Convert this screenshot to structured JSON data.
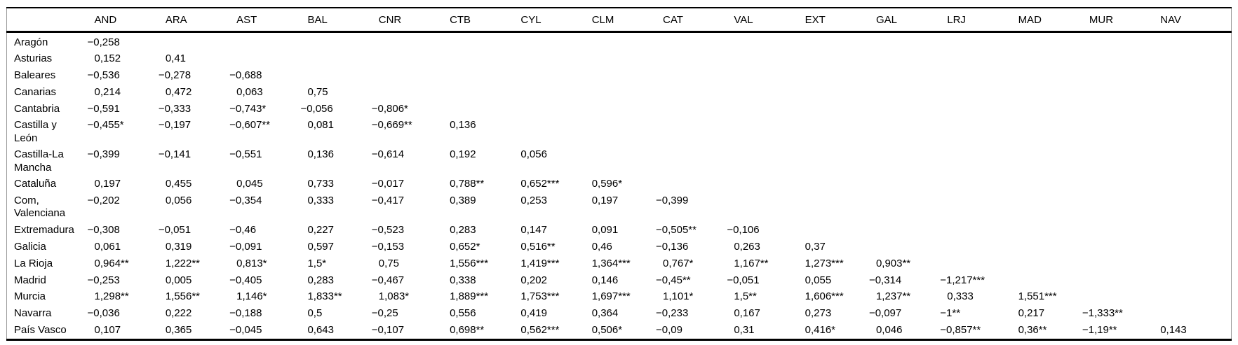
{
  "table": {
    "corner_label": "",
    "columns": [
      "AND",
      "ARA",
      "AST",
      "BAL",
      "CNR",
      "CTB",
      "CYL",
      "CLM",
      "CAT",
      "VAL",
      "EXT",
      "GAL",
      "LRJ",
      "MAD",
      "MUR",
      "NAV"
    ],
    "rows": [
      {
        "label": "Aragón",
        "values": [
          "−0,258"
        ]
      },
      {
        "label": "Asturias",
        "values": [
          "0,152",
          "0,41"
        ]
      },
      {
        "label": "Baleares",
        "values": [
          "−0,536",
          "−0,278",
          "−0,688"
        ]
      },
      {
        "label": "Canarias",
        "values": [
          "0,214",
          "0,472",
          "0,063",
          "0,75"
        ]
      },
      {
        "label": "Cantabria",
        "values": [
          "−0,591",
          "−0,333",
          "−0,743*",
          "−0,056",
          "−0,806*"
        ]
      },
      {
        "label": "Castilla y\nLeón",
        "values": [
          "−0,455*",
          "−0,197",
          "−0,607**",
          "0,081",
          "−0,669**",
          "0,136"
        ]
      },
      {
        "label": "Castilla-La\nMancha",
        "values": [
          "−0,399",
          "−0,141",
          "−0,551",
          "0,136",
          "−0,614",
          "0,192",
          "0,056"
        ]
      },
      {
        "label": "Cataluña",
        "values": [
          "0,197",
          "0,455",
          "0,045",
          "0,733",
          "−0,017",
          "0,788**",
          "0,652***",
          "0,596*"
        ]
      },
      {
        "label": "Com,\nValenciana",
        "values": [
          "−0,202",
          "0,056",
          "−0,354",
          "0,333",
          "−0,417",
          "0,389",
          "0,253",
          "0,197",
          "−0,399"
        ]
      },
      {
        "label": "Extremadura",
        "values": [
          "−0,308",
          "−0,051",
          "−0,46",
          "0,227",
          "−0,523",
          "0,283",
          "0,147",
          "0,091",
          "−0,505**",
          "−0,106"
        ]
      },
      {
        "label": "Galicia",
        "values": [
          "0,061",
          "0,319",
          "−0,091",
          "0,597",
          "−0,153",
          "0,652*",
          "0,516**",
          "0,46",
          "−0,136",
          "0,263",
          "0,37"
        ]
      },
      {
        "label": "La Rioja",
        "values": [
          "0,964**",
          "1,222**",
          "0,813*",
          "1,5*",
          "0,75",
          "1,556***",
          "1,419***",
          "1,364***",
          "0,767*",
          "1,167**",
          "1,273***",
          "0,903**"
        ]
      },
      {
        "label": "Madrid",
        "values": [
          "−0,253",
          "0,005",
          "−0,405",
          "0,283",
          "−0,467",
          "0,338",
          "0,202",
          "0,146",
          "−0,45**",
          "−0,051",
          "0,055",
          "−0,314",
          "−1,217***"
        ]
      },
      {
        "label": "Murcia",
        "values": [
          "1,298**",
          "1,556**",
          "1,146*",
          "1,833**",
          "1,083*",
          "1,889***",
          "1,753***",
          "1,697***",
          "1,101*",
          "1,5**",
          "1,606***",
          "1,237**",
          "0,333",
          "1,551***"
        ]
      },
      {
        "label": "Navarra",
        "values": [
          "−0,036",
          "0,222",
          "−0,188",
          "0,5",
          "−0,25",
          "0,556",
          "0,419",
          "0,364",
          "−0,233",
          "0,167",
          "0,273",
          "−0,097",
          "−1**",
          "0,217",
          "−1,333**"
        ]
      },
      {
        "label": "País Vasco",
        "values": [
          "0,107",
          "0,365",
          "−0,045",
          "0,643",
          "−0,107",
          "0,698**",
          "0,562***",
          "0,506*",
          "−0,09",
          "0,31",
          "0,416*",
          "0,046",
          "−0,857**",
          "0,36**",
          "−1,19**",
          "0,143"
        ]
      }
    ]
  }
}
